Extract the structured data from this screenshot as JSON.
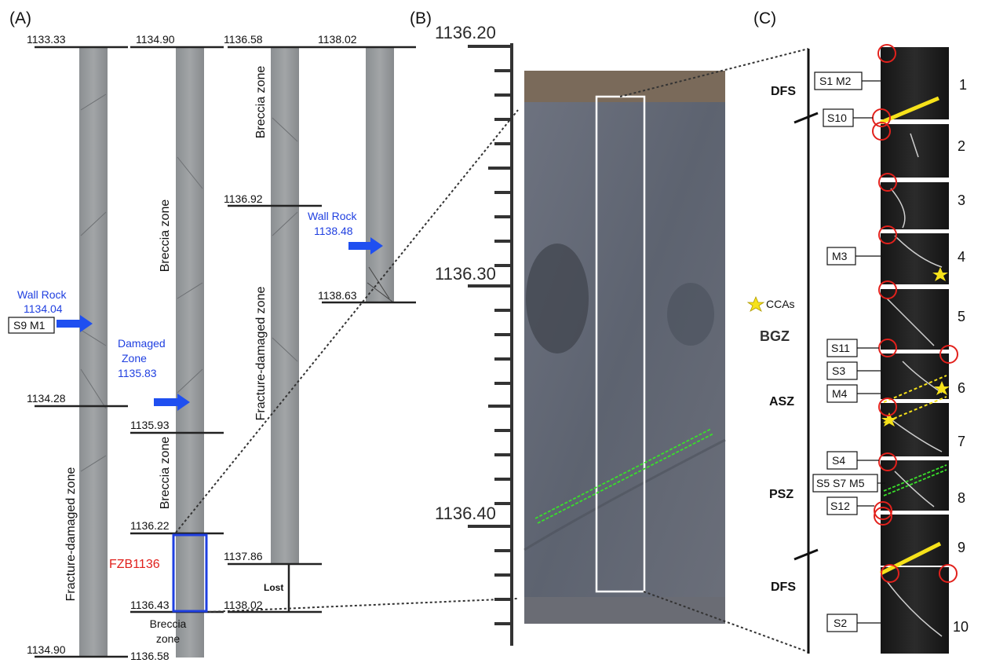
{
  "panels": {
    "a": "(A)",
    "b": "(B)",
    "c": "(C)"
  },
  "panel_a": {
    "depths": {
      "c1_top": "1133.33",
      "c1_mid": "1134.28",
      "c1_bot": "1134.90",
      "c2_top": "1134.90",
      "c2_d1": "1135.93",
      "c2_d2": "1136.22",
      "c2_d3": "1136.43",
      "c2_bot": "1136.58",
      "c3_top": "1136.58",
      "c3_d1": "1136.92",
      "c3_d2": "1137.86",
      "c3_bot": "1138.02",
      "c4_top": "1138.02",
      "c4_bot": "1138.63"
    },
    "zones": {
      "c1_fracture": "Fracture-damaged zone",
      "c2_breccia_upper": "Breccia zone",
      "c2_breccia_lower": "Breccia zone",
      "c2_breccia_bottom_1": "Breccia",
      "c2_breccia_bottom_2": "zone",
      "c3_breccia": "Breccia zone",
      "c3_fracture": "Fracture-damaged zone",
      "lost": "Lost"
    },
    "samples": {
      "wall_rock_1_title": "Wall Rock",
      "wall_rock_1_depth": "1134.04",
      "wall_rock_1_box": "S9   M1",
      "damaged_1": "Damaged",
      "damaged_2": "Zone",
      "damaged_depth": "1135.83",
      "wall_rock_2_title": "Wall Rock",
      "wall_rock_2_depth": "1138.48",
      "fzb": "FZB1136"
    }
  },
  "panel_b": {
    "ticks": [
      "1136.20",
      "1136.30",
      "1136.40"
    ]
  },
  "panel_c": {
    "zones": {
      "dfs_top": "DFS",
      "bgz": "BGZ",
      "asz": "ASZ",
      "psz": "PSZ",
      "dfs_bottom": "DFS"
    },
    "legend": "CCAs",
    "boxes": [
      "S1  M2",
      "S10",
      "M3",
      "S11",
      "S3",
      "M4",
      "S4",
      "S5  S7  M5",
      "S12",
      "S2"
    ],
    "segments": [
      "1",
      "2",
      "3",
      "4",
      "5",
      "6",
      "7",
      "8",
      "9",
      "10"
    ]
  },
  "colors": {
    "blue_arrow": "#1f4ff0",
    "fzb_box": "#1f3fe0",
    "fzb_label": "#e0201c",
    "markers": "#e2211c",
    "stars": "#f6e21a",
    "green_lines": "#39e02a"
  }
}
